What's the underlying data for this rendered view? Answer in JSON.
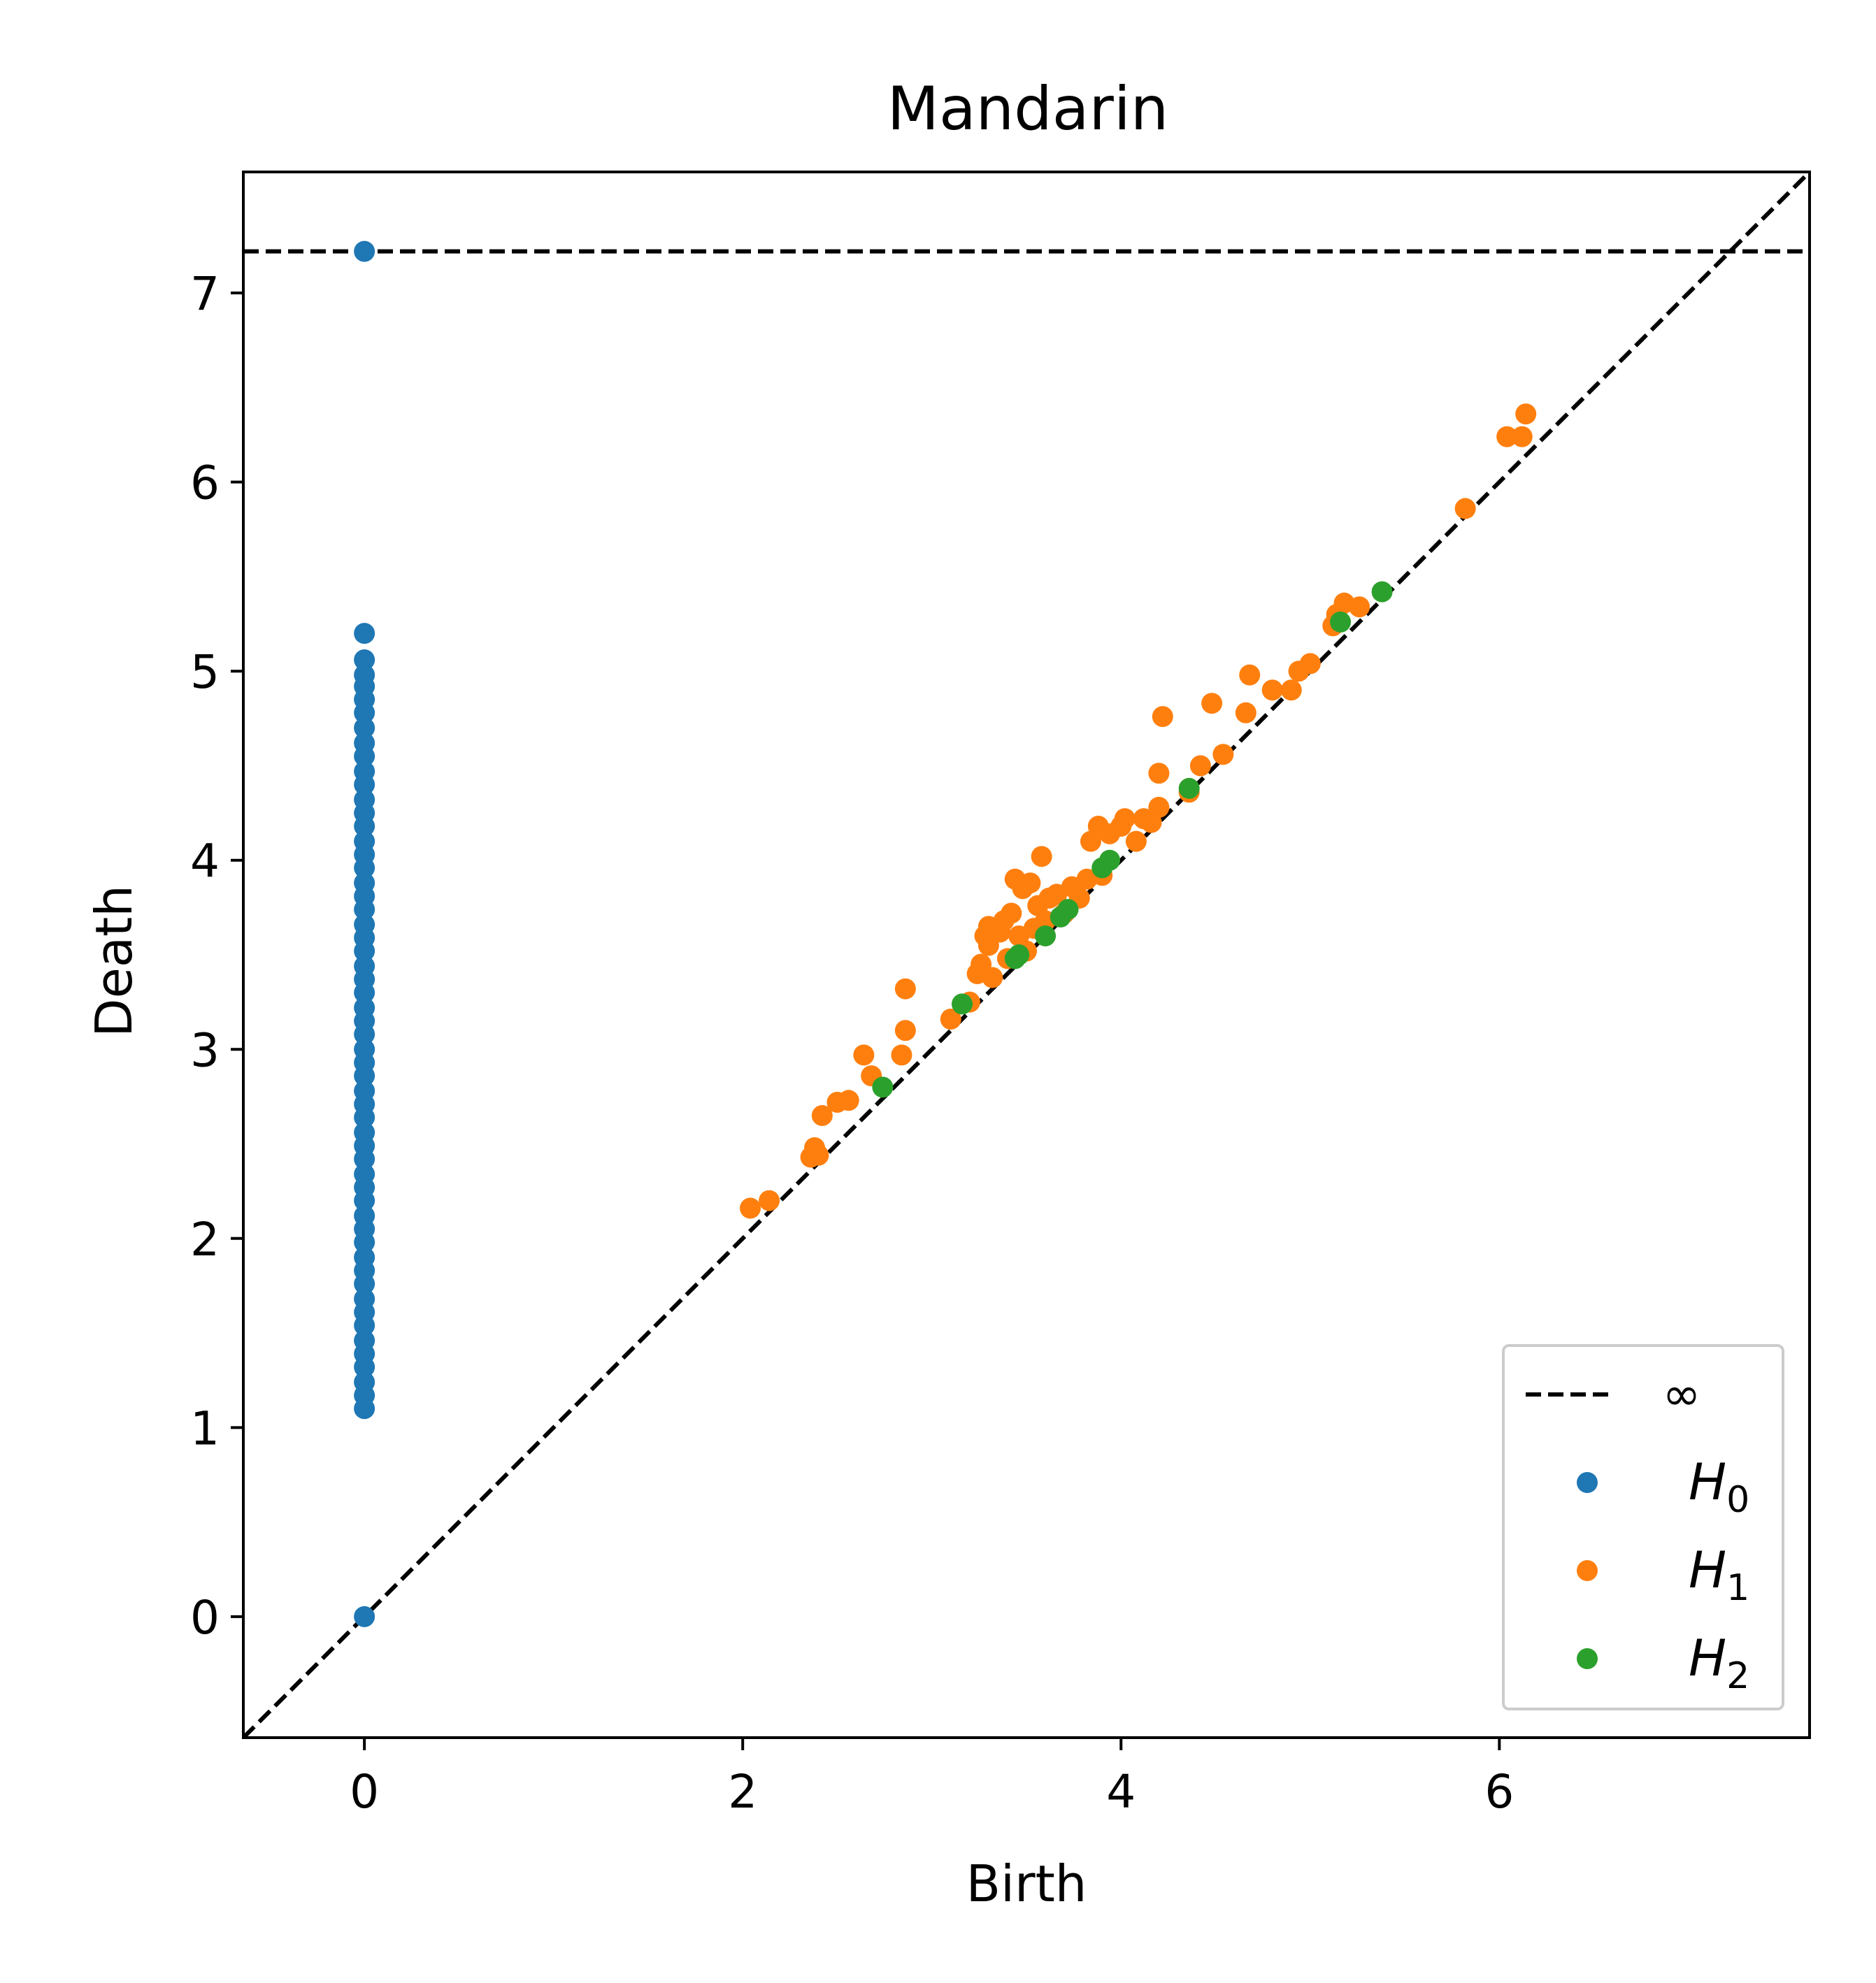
{
  "chart_data": {
    "type": "scatter",
    "title": "Mandarin",
    "xlabel": "Birth",
    "ylabel": "Death",
    "xlim": [
      -0.64,
      7.64
    ],
    "ylim": [
      -0.64,
      7.64
    ],
    "xticks": [
      0,
      2,
      4,
      6
    ],
    "yticks": [
      0,
      1,
      2,
      3,
      4,
      5,
      6,
      7
    ],
    "infinity_death": 7.22,
    "diagonal": true,
    "grid": false,
    "legend": {
      "placement": "bottom-right",
      "entries": [
        {
          "kind": "line",
          "label": "∞",
          "style": "dashed",
          "color": "#000000"
        },
        {
          "kind": "marker",
          "label": "H",
          "subscript": "0",
          "color": "#1f77b4"
        },
        {
          "kind": "marker",
          "label": "H",
          "subscript": "1",
          "color": "#ff7f0e"
        },
        {
          "kind": "marker",
          "label": "H",
          "subscript": "2",
          "color": "#2ca02c"
        }
      ]
    },
    "series": [
      {
        "name": "H0",
        "color": "#1f77b4",
        "points": [
          [
            0,
            0
          ],
          [
            0,
            7.22
          ],
          [
            0,
            5.2
          ],
          [
            0,
            5.06
          ],
          [
            0,
            4.98
          ],
          [
            0,
            4.92
          ],
          [
            0,
            4.85
          ],
          [
            0,
            4.78
          ],
          [
            0,
            4.7
          ],
          [
            0,
            4.62
          ],
          [
            0,
            4.55
          ],
          [
            0,
            4.47
          ],
          [
            0,
            4.4
          ],
          [
            0,
            4.32
          ],
          [
            0,
            4.25
          ],
          [
            0,
            4.18
          ],
          [
            0,
            4.1
          ],
          [
            0,
            4.03
          ],
          [
            0,
            3.96
          ],
          [
            0,
            3.88
          ],
          [
            0,
            3.81
          ],
          [
            0,
            3.74
          ],
          [
            0,
            3.66
          ],
          [
            0,
            3.59
          ],
          [
            0,
            3.52
          ],
          [
            0,
            3.44
          ],
          [
            0,
            3.37
          ],
          [
            0,
            3.3
          ],
          [
            0,
            3.22
          ],
          [
            0,
            3.15
          ],
          [
            0,
            3.08
          ],
          [
            0,
            3.0
          ],
          [
            0,
            2.93
          ],
          [
            0,
            2.86
          ],
          [
            0,
            2.78
          ],
          [
            0,
            2.71
          ],
          [
            0,
            2.64
          ],
          [
            0,
            2.56
          ],
          [
            0,
            2.49
          ],
          [
            0,
            2.42
          ],
          [
            0,
            2.34
          ],
          [
            0,
            2.27
          ],
          [
            0,
            2.2
          ],
          [
            0,
            2.12
          ],
          [
            0,
            2.05
          ],
          [
            0,
            1.98
          ],
          [
            0,
            1.9
          ],
          [
            0,
            1.83
          ],
          [
            0,
            1.76
          ],
          [
            0,
            1.68
          ],
          [
            0,
            1.61
          ],
          [
            0,
            1.54
          ],
          [
            0,
            1.46
          ],
          [
            0,
            1.39
          ],
          [
            0,
            1.32
          ],
          [
            0,
            1.24
          ],
          [
            0,
            1.17
          ],
          [
            0,
            1.1
          ]
        ]
      },
      {
        "name": "H1",
        "color": "#ff7f0e",
        "points": [
          [
            2.04,
            2.16
          ],
          [
            2.14,
            2.2
          ],
          [
            2.36,
            2.43
          ],
          [
            2.4,
            2.44
          ],
          [
            2.38,
            2.48
          ],
          [
            2.42,
            2.65
          ],
          [
            2.5,
            2.72
          ],
          [
            2.56,
            2.73
          ],
          [
            2.64,
            2.97
          ],
          [
            2.68,
            2.86
          ],
          [
            2.84,
            2.97
          ],
          [
            2.86,
            3.1
          ],
          [
            2.86,
            3.32
          ],
          [
            3.1,
            3.16
          ],
          [
            3.2,
            3.25
          ],
          [
            3.24,
            3.4
          ],
          [
            3.26,
            3.45
          ],
          [
            3.28,
            3.6
          ],
          [
            3.3,
            3.55
          ],
          [
            3.3,
            3.65
          ],
          [
            3.32,
            3.38
          ],
          [
            3.36,
            3.62
          ],
          [
            3.38,
            3.68
          ],
          [
            3.4,
            3.48
          ],
          [
            3.42,
            3.72
          ],
          [
            3.44,
            3.9
          ],
          [
            3.46,
            3.6
          ],
          [
            3.48,
            3.85
          ],
          [
            3.5,
            3.52
          ],
          [
            3.52,
            3.88
          ],
          [
            3.54,
            3.64
          ],
          [
            3.56,
            3.76
          ],
          [
            3.58,
            4.02
          ],
          [
            3.6,
            3.68
          ],
          [
            3.62,
            3.8
          ],
          [
            3.66,
            3.82
          ],
          [
            3.7,
            3.72
          ],
          [
            3.74,
            3.86
          ],
          [
            3.78,
            3.8
          ],
          [
            3.82,
            3.9
          ],
          [
            3.84,
            4.1
          ],
          [
            3.88,
            4.18
          ],
          [
            3.9,
            3.92
          ],
          [
            3.94,
            4.14
          ],
          [
            4.0,
            4.18
          ],
          [
            4.02,
            4.22
          ],
          [
            4.08,
            4.1
          ],
          [
            4.12,
            4.22
          ],
          [
            4.16,
            4.2
          ],
          [
            4.2,
            4.28
          ],
          [
            4.2,
            4.46
          ],
          [
            4.22,
            4.76
          ],
          [
            4.36,
            4.36
          ],
          [
            4.42,
            4.5
          ],
          [
            4.48,
            4.83
          ],
          [
            4.54,
            4.56
          ],
          [
            4.66,
            4.78
          ],
          [
            4.68,
            4.98
          ],
          [
            4.8,
            4.9
          ],
          [
            4.9,
            4.9
          ],
          [
            4.94,
            5.0
          ],
          [
            5.0,
            5.04
          ],
          [
            5.12,
            5.24
          ],
          [
            5.14,
            5.3
          ],
          [
            5.18,
            5.36
          ],
          [
            5.26,
            5.34
          ],
          [
            5.82,
            5.86
          ],
          [
            6.04,
            6.24
          ],
          [
            6.12,
            6.24
          ],
          [
            6.14,
            6.36
          ]
        ]
      },
      {
        "name": "H2",
        "color": "#2ca02c",
        "points": [
          [
            2.74,
            2.8
          ],
          [
            3.16,
            3.24
          ],
          [
            3.44,
            3.48
          ],
          [
            3.46,
            3.5
          ],
          [
            3.6,
            3.6
          ],
          [
            3.68,
            3.7
          ],
          [
            3.72,
            3.74
          ],
          [
            3.9,
            3.96
          ],
          [
            3.94,
            4.0
          ],
          [
            4.36,
            4.38
          ],
          [
            5.16,
            5.26
          ],
          [
            5.38,
            5.42
          ]
        ]
      }
    ]
  }
}
